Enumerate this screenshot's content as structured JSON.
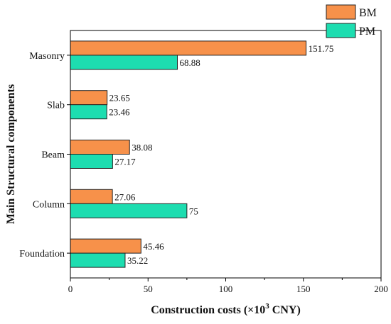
{
  "chart_data": {
    "type": "bar",
    "orientation": "horizontal",
    "title": "",
    "xlabel": "Construction costs (×10³ CNY)",
    "xlabel_parts": {
      "main": "Construction costs (×10",
      "sup": "3",
      "tail": " CNY)"
    },
    "ylabel": "Main Structural components",
    "xlim": [
      0,
      200
    ],
    "xticks": [
      0,
      50,
      100,
      150,
      200
    ],
    "grid": false,
    "legend_position": "top-right",
    "categories": [
      "Masonry",
      "Slab",
      "Beam",
      "Column",
      "Foundation"
    ],
    "series": [
      {
        "name": "BM",
        "color": "#F7914A",
        "values": [
          151.75,
          23.65,
          38.08,
          27.06,
          45.46
        ]
      },
      {
        "name": "PM",
        "color": "#1DDDB0",
        "values": [
          68.88,
          23.46,
          27.17,
          75,
          35.22
        ]
      }
    ],
    "value_labels": {
      "BM": [
        "151.75",
        "23.65",
        "38.08",
        "27.06",
        "45.46"
      ],
      "PM": [
        "68.88",
        "23.46",
        "27.17",
        "75",
        "35.22"
      ]
    }
  }
}
